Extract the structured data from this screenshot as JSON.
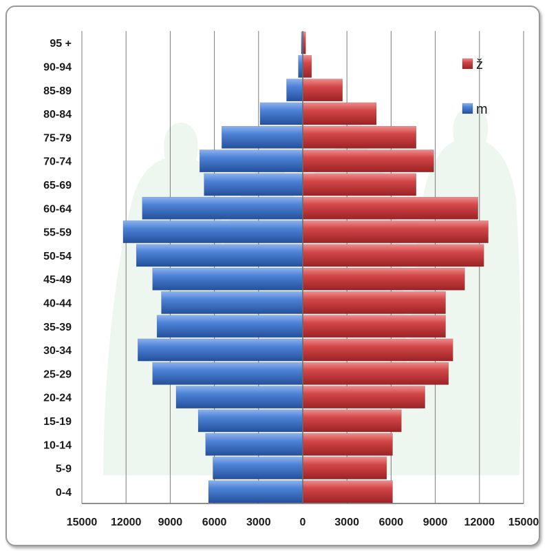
{
  "chart_data": {
    "type": "bar",
    "orientation": "horizontal",
    "layout": "population-pyramid",
    "categories": [
      "0-4",
      "5-9",
      "10-14",
      "15-19",
      "20-24",
      "25-29",
      "30-34",
      "35-39",
      "40-44",
      "45-49",
      "50-54",
      "55-59",
      "60-64",
      "65-69",
      "70-74",
      "75-79",
      "80-84",
      "85-89",
      "90-94",
      "95 +"
    ],
    "series": [
      {
        "name": "m",
        "side": "left",
        "color": "#3c6fc4",
        "values": [
          6400,
          6100,
          6600,
          7100,
          8600,
          10200,
          11200,
          9900,
          9600,
          10200,
          11300,
          12200,
          10900,
          6700,
          7000,
          5500,
          2900,
          1100,
          300,
          100
        ]
      },
      {
        "name": "ž",
        "side": "right",
        "color": "#c9373a",
        "values": [
          6100,
          5700,
          6100,
          6700,
          8300,
          9900,
          10200,
          9700,
          9700,
          11000,
          12300,
          12600,
          11900,
          7700,
          8900,
          7700,
          5000,
          2700,
          600,
          200
        ]
      }
    ],
    "xlim": [
      -15000,
      15000
    ],
    "x_ticks": [
      "15000",
      "12000",
      "9000",
      "6000",
      "3000",
      "0",
      "3000",
      "6000",
      "9000",
      "12000",
      "15000"
    ],
    "title": "",
    "xlabel": "",
    "ylabel": "",
    "grid": "vertical",
    "legend": {
      "placement": "top-right",
      "order": [
        "ž",
        "m"
      ]
    }
  }
}
